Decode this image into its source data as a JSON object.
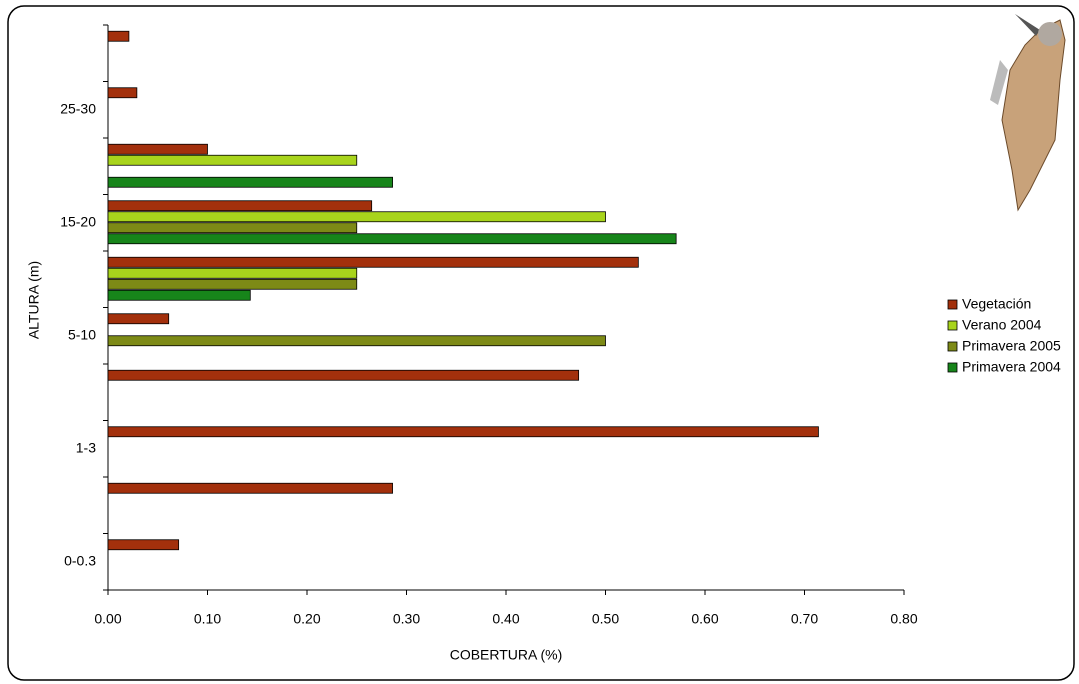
{
  "chart_data": {
    "type": "barh",
    "xlabel": "COBERTURA (%)",
    "ylabel": "ALTURA (m)",
    "categories": [
      "0-0.3",
      null,
      "1-3",
      null,
      "5-10",
      null,
      "15-20",
      null,
      "25-30",
      null
    ],
    "series": [
      {
        "name": "Vegetación",
        "color": "#a3300c",
        "values": [
          0.071,
          0.286,
          0.714,
          0.473,
          0.061,
          0.533,
          0.265,
          0.1,
          0.029,
          0.021
        ]
      },
      {
        "name": "Verano 2004",
        "color": "#a8d41c",
        "values": [
          0,
          0,
          0,
          0,
          0,
          0.25,
          0.5,
          0.25,
          0,
          0
        ]
      },
      {
        "name": "Primavera 2005",
        "color": "#7d8a16",
        "values": [
          0,
          0,
          0,
          0,
          0.5,
          0.25,
          0.25,
          0,
          0,
          0
        ]
      },
      {
        "name": "Primavera 2004",
        "color": "#17851a",
        "values": [
          0,
          0,
          0,
          0,
          0,
          0.143,
          0.571,
          0.286,
          0,
          0
        ]
      }
    ],
    "xlim": [
      0,
      0.8
    ],
    "xticks": [
      {
        "value": 0,
        "label": "0.00"
      },
      {
        "value": 0.1,
        "label": "0.10"
      },
      {
        "value": 0.2,
        "label": "0.20"
      },
      {
        "value": 0.3,
        "label": "0.30"
      },
      {
        "value": 0.4,
        "label": "0.40"
      },
      {
        "value": 0.5,
        "label": "0.50"
      },
      {
        "value": 0.6,
        "label": "0.60"
      },
      {
        "value": 0.7,
        "label": "0.70"
      },
      {
        "value": 0.8,
        "label": "0.80"
      }
    ],
    "grid": false,
    "legend": "right"
  }
}
